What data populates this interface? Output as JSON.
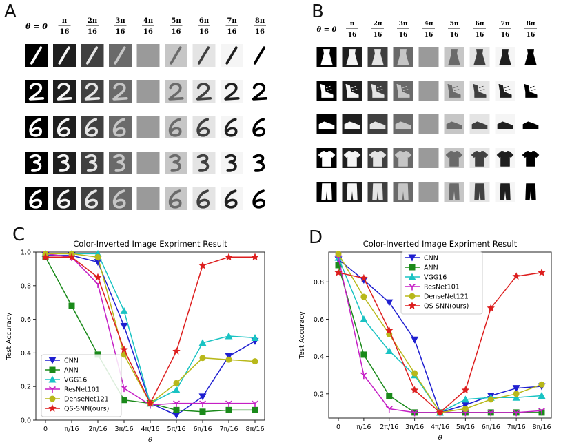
{
  "panels": {
    "a": "A",
    "b": "B",
    "c": "C",
    "d": "D"
  },
  "theta_headers": [
    "θ = 0",
    "π/16",
    "2π/16",
    "3π/16",
    "4π/16",
    "5π/16",
    "6π/16",
    "7π/16",
    "8π/16"
  ],
  "image_grid": {
    "column_gray": [
      "#000000",
      "#1f1f1f",
      "#404040",
      "#6a6a6a",
      "#9a9a9a",
      "#c6c6c6",
      "#e4e4e4",
      "#f5f5f5",
      "#ffffff"
    ],
    "mnist_rows": [
      "1",
      "2",
      "6",
      "3",
      "6"
    ],
    "fashion_rows": [
      "dress",
      "sandal",
      "sneaker",
      "tshirt",
      "trouser"
    ]
  },
  "chart_data": [
    {
      "type": "line",
      "title": "Color-Inverted Image Expriment Result",
      "xlabel": "θ",
      "ylabel": "Test Accuracy",
      "categories": [
        "0",
        "π/16",
        "2π/16",
        "3π/16",
        "4π/16",
        "5π/16",
        "6π/16",
        "7π/16",
        "8π/16"
      ],
      "ylim": [
        0,
        1.0
      ],
      "yticks": [
        "0.0",
        "0.2",
        "0.4",
        "0.6",
        "0.8",
        "1.0"
      ],
      "legend_position": "lower-left",
      "series": [
        {
          "name": "CNN",
          "color": "#1f1fd0",
          "marker": "triangle-down",
          "values": [
            0.98,
            0.98,
            0.94,
            0.56,
            0.1,
            0.03,
            0.14,
            0.38,
            0.47
          ]
        },
        {
          "name": "ANN",
          "color": "#1a8a1a",
          "marker": "square",
          "values": [
            0.97,
            0.68,
            0.39,
            0.12,
            0.1,
            0.06,
            0.05,
            0.06,
            0.06
          ]
        },
        {
          "name": "VGG16",
          "color": "#19c3c3",
          "marker": "triangle-up",
          "values": [
            0.99,
            0.99,
            0.99,
            0.65,
            0.1,
            0.18,
            0.46,
            0.5,
            0.49
          ]
        },
        {
          "name": "ResNet101",
          "color": "#c51fc5",
          "marker": "tri",
          "values": [
            0.99,
            0.97,
            0.81,
            0.19,
            0.09,
            0.1,
            0.1,
            0.1,
            0.1
          ]
        },
        {
          "name": "DenseNet121",
          "color": "#b8b81a",
          "marker": "circle",
          "values": [
            0.99,
            0.99,
            0.97,
            0.39,
            0.1,
            0.22,
            0.37,
            0.36,
            0.35
          ]
        },
        {
          "name": "QS-SNN(ours)",
          "color": "#dd1f1f",
          "marker": "star",
          "values": [
            0.97,
            0.97,
            0.85,
            0.42,
            0.1,
            0.41,
            0.92,
            0.97,
            0.97
          ]
        }
      ]
    },
    {
      "type": "line",
      "title": "Color-Inverted Image Expriment Result",
      "xlabel": "θ",
      "ylabel": "Test Accuracy",
      "categories": [
        "0",
        "π/16",
        "2π/16",
        "3π/16",
        "4π/16",
        "5π/16",
        "6π/16",
        "7π/16",
        "8π/16"
      ],
      "ylim": [
        0.07,
        0.96
      ],
      "yticks": [
        "0.2",
        "0.4",
        "0.6",
        "0.8"
      ],
      "legend_position": "upper-center",
      "series": [
        {
          "name": "CNN",
          "color": "#1f1fd0",
          "marker": "triangle-down",
          "values": [
            0.92,
            0.81,
            0.69,
            0.49,
            0.1,
            0.14,
            0.19,
            0.23,
            0.24
          ]
        },
        {
          "name": "ANN",
          "color": "#1a8a1a",
          "marker": "square",
          "values": [
            0.89,
            0.41,
            0.19,
            0.1,
            0.1,
            0.1,
            0.1,
            0.1,
            0.1
          ]
        },
        {
          "name": "VGG16",
          "color": "#19c3c3",
          "marker": "triangle-up",
          "values": [
            0.93,
            0.6,
            0.43,
            0.3,
            0.1,
            0.17,
            0.18,
            0.18,
            0.19
          ]
        },
        {
          "name": "ResNet101",
          "color": "#c51fc5",
          "marker": "tri",
          "values": [
            0.93,
            0.3,
            0.12,
            0.1,
            0.1,
            0.1,
            0.1,
            0.1,
            0.11
          ]
        },
        {
          "name": "DenseNet121",
          "color": "#b8b81a",
          "marker": "circle",
          "values": [
            0.95,
            0.72,
            0.52,
            0.31,
            0.1,
            0.12,
            0.17,
            0.2,
            0.25
          ]
        },
        {
          "name": "QS-SNN(ours)",
          "color": "#dd1f1f",
          "marker": "star",
          "values": [
            0.85,
            0.82,
            0.54,
            0.22,
            0.1,
            0.22,
            0.66,
            0.83,
            0.85
          ]
        }
      ]
    }
  ]
}
